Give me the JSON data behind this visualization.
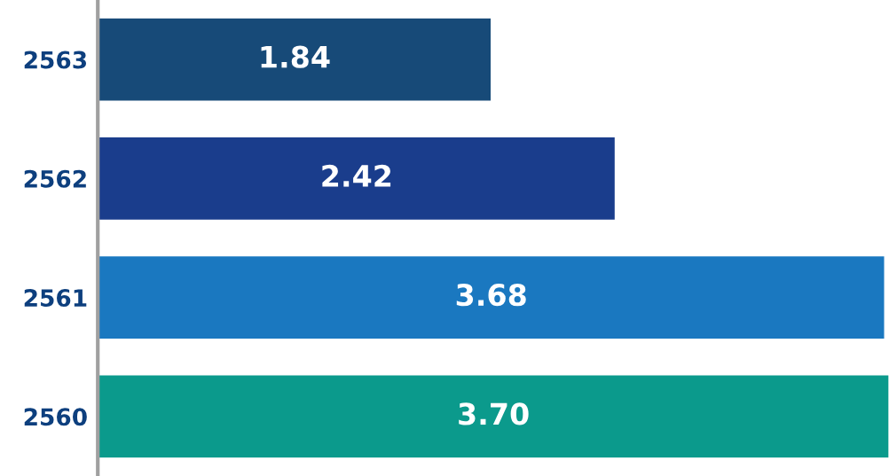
{
  "chart_data": {
    "type": "bar",
    "orientation": "horizontal",
    "categories": [
      "2563",
      "2562",
      "2561",
      "2560"
    ],
    "values": [
      1.84,
      2.42,
      3.68,
      3.7
    ],
    "colors": [
      "#174a78",
      "#1a3d8c",
      "#1a78c0",
      "#0b9a8c"
    ],
    "value_labels": [
      "1.84",
      "2.42",
      "3.68",
      "3.70"
    ],
    "grid": false,
    "legend": false
  }
}
